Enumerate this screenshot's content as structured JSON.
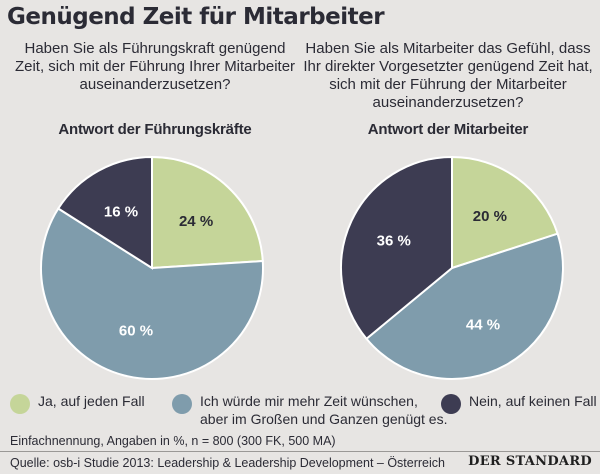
{
  "title": "Genügend Zeit für Mitarbeiter",
  "questions": {
    "left": "Haben Sie als Führungskraft genügend Zeit, sich mit der Führung Ihrer Mitarbeiter auseinanderzusetzen?",
    "right": "Haben Sie als Mitarbeiter das Gefühl, dass Ihr direkter Vorgesetzter genügend Zeit hat, sich mit der Führung der Mitarbeiter auseinanderzusetzen?"
  },
  "colors": {
    "ja": "#c5d599",
    "ich": "#7f9cac",
    "nein": "#3d3c52",
    "background": "#e7e5e3"
  },
  "chart_data": [
    {
      "type": "pie",
      "title": "Antwort der Führungskräfte",
      "categories": [
        "Ja, auf jeden Fall",
        "Ich würde mir mehr Zeit wünschen, aber im Großen und Ganzen genügt es.",
        "Nein, auf keinen Fall"
      ],
      "values": [
        24,
        60,
        16
      ],
      "labels": [
        "24 %",
        "60 %",
        "16 %"
      ]
    },
    {
      "type": "pie",
      "title": "Antwort der Mitarbeiter",
      "categories": [
        "Ja, auf jeden Fall",
        "Ich würde mir mehr Zeit wünschen, aber im Großen und Ganzen genügt es.",
        "Nein, auf keinen Fall"
      ],
      "values": [
        20,
        44,
        36
      ],
      "labels": [
        "20 %",
        "44 %",
        "36 %"
      ]
    }
  ],
  "legend": [
    {
      "label": "Ja, auf jeden Fall",
      "color": "#c5d599"
    },
    {
      "label": "Ich würde mir mehr Zeit wünschen,\naber im Großen und Ganzen genügt es.",
      "color": "#7f9cac"
    },
    {
      "label": "Nein, auf keinen Fall",
      "color": "#3d3c52"
    }
  ],
  "note": "Einfachnennung, Angaben in %, n = 800 (300 FK, 500 MA)",
  "source": "Quelle: osb-i Studie 2013: Leadership & Leadership Development – Österreich",
  "logo": "DER STANDARD"
}
